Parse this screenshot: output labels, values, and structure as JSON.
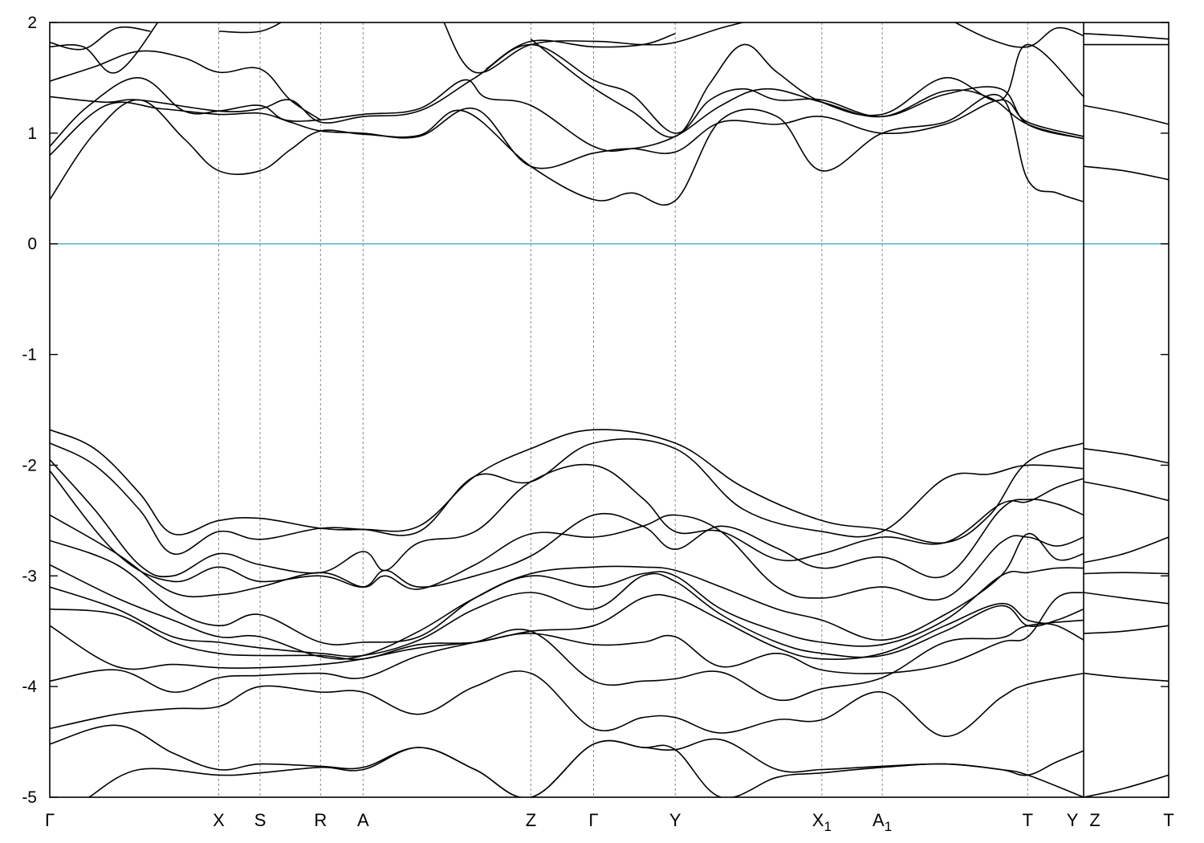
{
  "chart_data": {
    "type": "line",
    "title": "",
    "xlabel": "",
    "ylabel": "",
    "ylim": [
      -5,
      2
    ],
    "yticks": [
      -5,
      -4,
      -3,
      -2,
      -1,
      0,
      1,
      2
    ],
    "ytick_labels": [
      "-5",
      "-4",
      "-3",
      "-2",
      "-1",
      "0",
      "1",
      "2"
    ],
    "grid": "vertical dashed lines at high-symmetry points",
    "fermi_level": {
      "y": 0,
      "color": "#5fb3c8"
    },
    "band_color": "#000000",
    "x_range": [
      0,
      1000
    ],
    "kpoints": [
      {
        "label": "Γ",
        "sub": "",
        "x": 0
      },
      {
        "label": "X",
        "sub": "",
        "x": 151
      },
      {
        "label": "S",
        "sub": "",
        "x": 188
      },
      {
        "label": "R",
        "sub": "",
        "x": 242
      },
      {
        "label": "A",
        "sub": "",
        "x": 280
      },
      {
        "label": "Z",
        "sub": "",
        "x": 430
      },
      {
        "label": "Γ",
        "sub": "",
        "x": 486
      },
      {
        "label": "Y",
        "sub": "",
        "x": 559
      },
      {
        "label": "X",
        "sub": "1",
        "x": 690
      },
      {
        "label": "A",
        "sub": "1",
        "x": 744
      },
      {
        "label": "T",
        "sub": "",
        "x": 874
      },
      {
        "label": "Y",
        "sub": "",
        "x": 924
      },
      {
        "label": "Z",
        "sub": "",
        "x": 924
      },
      {
        "label": "T",
        "sub": "",
        "x": 1000
      }
    ],
    "break_x": 924,
    "series": [
      {
        "x": [
          0,
          40,
          80,
          120,
          151,
          188,
          215,
          242,
          280,
          330,
          370,
          430,
          486,
          520,
          559,
          600,
          650,
          690,
          744,
          800,
          850,
          874,
          900,
          924
        ],
        "y": [
          0.4,
          1.0,
          1.3,
          0.95,
          0.66,
          0.66,
          0.85,
          1.02,
          0.99,
          0.98,
          1.2,
          0.7,
          0.4,
          0.46,
          0.39,
          1.12,
          1.15,
          0.66,
          1.0,
          1.1,
          1.33,
          0.58,
          0.46,
          0.38
        ]
      },
      {
        "x": [
          0,
          50,
          100,
          151,
          188,
          215,
          242,
          280,
          330,
          380,
          430,
          486,
          520,
          559,
          600,
          650,
          690,
          744,
          800,
          850,
          874,
          924
        ],
        "y": [
          0.8,
          1.25,
          1.22,
          1.17,
          1.18,
          1.1,
          1.02,
          1.0,
          0.97,
          1.22,
          0.7,
          0.82,
          0.86,
          0.83,
          1.1,
          1.08,
          1.15,
          1.0,
          1.08,
          1.3,
          1.1,
          0.97
        ]
      },
      {
        "x": [
          0,
          35,
          80,
          120,
          151,
          188,
          210,
          242,
          280,
          330,
          370,
          390,
          430,
          486,
          520,
          559,
          600,
          640,
          690,
          744,
          800,
          840,
          874,
          924
        ],
        "y": [
          0.88,
          1.25,
          1.5,
          1.2,
          1.2,
          1.25,
          1.12,
          1.12,
          1.17,
          1.22,
          1.48,
          1.32,
          1.25,
          0.88,
          0.86,
          0.97,
          1.25,
          1.4,
          1.28,
          1.15,
          1.38,
          1.32,
          1.08,
          0.95
        ]
      },
      {
        "x": [
          0,
          50,
          80,
          151,
          188,
          215,
          242,
          280,
          330,
          380,
          430,
          486,
          520,
          559,
          590,
          620,
          650,
          690,
          744,
          800,
          850,
          874,
          924
        ],
        "y": [
          1.33,
          1.28,
          1.3,
          1.2,
          1.22,
          1.3,
          1.1,
          1.15,
          1.2,
          1.5,
          1.8,
          1.48,
          1.35,
          1.0,
          1.3,
          1.4,
          1.3,
          1.3,
          1.15,
          1.35,
          1.4,
          1.08,
          0.95
        ]
      },
      {
        "x": [
          0,
          40,
          80,
          120,
          151,
          188,
          215,
          242
        ],
        "y": [
          1.47,
          1.6,
          1.74,
          1.68,
          1.55,
          1.58,
          1.3,
          1.12
        ]
      },
      {
        "x": [
          0,
          30,
          60,
          100
        ],
        "y": [
          1.78,
          1.78,
          1.55,
          2.05
        ]
      },
      {
        "x": [
          0,
          30,
          60,
          90
        ],
        "y": [
          1.82,
          1.76,
          1.95,
          1.92
        ]
      },
      {
        "x": [
          350,
          380,
          430,
          486,
          530,
          559,
          600,
          640
        ],
        "y": [
          2.05,
          1.55,
          1.8,
          1.83,
          1.8,
          1.82,
          1.95,
          2.05
        ]
      },
      {
        "x": [
          390,
          430,
          486,
          530,
          559
        ],
        "y": [
          1.58,
          1.83,
          1.78,
          1.8,
          1.9
        ]
      },
      {
        "x": [
          430,
          480,
          520,
          559,
          590,
          620,
          650,
          690,
          744,
          800,
          850,
          874,
          924
        ],
        "y": [
          1.85,
          1.45,
          1.2,
          0.97,
          1.45,
          1.8,
          1.55,
          1.28,
          1.17,
          1.5,
          1.3,
          1.8,
          1.33
        ]
      },
      {
        "x": [
          151,
          188,
          215
        ],
        "y": [
          1.92,
          1.92,
          2.05
        ]
      },
      {
        "x": [
          800,
          840,
          874,
          900,
          924
        ],
        "y": [
          2.05,
          1.85,
          1.78,
          1.95,
          1.88
        ]
      },
      {
        "x": [
          924,
          960,
          1000
        ],
        "y": [
          1.8,
          1.8,
          1.8
        ]
      },
      {
        "x": [
          924,
          960,
          1000
        ],
        "y": [
          1.9,
          1.88,
          1.85
        ]
      },
      {
        "x": [
          924,
          960,
          1000
        ],
        "y": [
          1.25,
          1.18,
          1.08
        ]
      },
      {
        "x": [
          924,
          960,
          1000
        ],
        "y": [
          0.7,
          0.66,
          0.58
        ]
      },
      {
        "x": [
          0,
          40,
          80,
          110,
          151,
          188,
          242,
          280,
          330,
          380,
          430,
          486,
          559,
          620,
          690,
          744,
          800,
          840,
          874,
          924
        ],
        "y": [
          -1.68,
          -1.85,
          -2.25,
          -2.62,
          -2.5,
          -2.48,
          -2.57,
          -2.58,
          -2.55,
          -2.1,
          -1.85,
          -1.68,
          -1.8,
          -2.2,
          -2.5,
          -2.58,
          -2.7,
          -2.45,
          -1.97,
          -1.8
        ]
      },
      {
        "x": [
          0,
          40,
          80,
          110,
          151,
          188,
          242,
          280,
          330,
          380,
          430,
          486,
          559,
          620,
          690,
          744,
          800,
          840,
          874,
          924
        ],
        "y": [
          -1.8,
          -2.0,
          -2.4,
          -2.8,
          -2.6,
          -2.67,
          -2.57,
          -2.58,
          -2.6,
          -2.1,
          -2.15,
          -1.8,
          -1.85,
          -2.4,
          -2.6,
          -2.6,
          -2.12,
          -2.08,
          -2.0,
          -2.03
        ]
      },
      {
        "x": [
          0,
          40,
          80,
          110,
          151,
          188,
          242,
          280,
          300,
          330,
          380,
          430,
          486,
          530,
          559,
          600,
          650,
          690,
          744,
          800,
          850,
          874,
          900,
          924
        ],
        "y": [
          -1.95,
          -2.4,
          -2.9,
          -3.0,
          -2.8,
          -2.9,
          -2.97,
          -2.78,
          -2.95,
          -2.7,
          -2.6,
          -2.15,
          -2.0,
          -2.3,
          -2.6,
          -2.6,
          -2.85,
          -2.8,
          -2.65,
          -2.7,
          -2.35,
          -2.33,
          -2.2,
          -2.12
        ]
      },
      {
        "x": [
          0,
          60,
          110,
          151,
          188,
          242,
          280,
          300,
          330,
          380,
          430,
          486,
          530,
          559,
          600,
          650,
          690,
          744,
          800,
          850,
          874,
          900,
          924
        ],
        "y": [
          -2.05,
          -2.8,
          -3.05,
          -2.92,
          -3.05,
          -3.0,
          -3.1,
          -2.95,
          -3.1,
          -3.0,
          -2.82,
          -2.45,
          -2.55,
          -2.76,
          -2.55,
          -2.75,
          -2.93,
          -2.83,
          -3.0,
          -2.4,
          -2.31,
          -2.35,
          -2.45
        ]
      },
      {
        "x": [
          0,
          60,
          110,
          151,
          188,
          242,
          280,
          300,
          330,
          380,
          430,
          486,
          530,
          559,
          600,
          650,
          690,
          744,
          800,
          850,
          874,
          900,
          924
        ],
        "y": [
          -2.45,
          -2.8,
          -3.15,
          -3.17,
          -3.1,
          -2.97,
          -3.1,
          -3.0,
          -3.12,
          -2.9,
          -2.62,
          -2.65,
          -2.55,
          -2.45,
          -2.6,
          -3.1,
          -3.2,
          -3.1,
          -3.2,
          -2.7,
          -2.65,
          -2.73,
          -2.65
        ]
      },
      {
        "x": [
          0,
          60,
          110,
          151,
          188,
          242,
          280,
          330,
          380,
          430,
          486,
          530,
          559,
          600,
          650,
          690,
          744,
          800,
          850,
          874,
          900,
          924
        ],
        "y": [
          -2.68,
          -2.9,
          -3.3,
          -3.45,
          -3.35,
          -3.6,
          -3.6,
          -3.55,
          -3.2,
          -2.98,
          -2.92,
          -2.92,
          -2.95,
          -3.1,
          -3.3,
          -3.4,
          -3.58,
          -3.35,
          -3.0,
          -2.62,
          -2.85,
          -2.8
        ]
      },
      {
        "x": [
          0,
          60,
          110,
          151,
          188,
          242,
          280,
          330,
          380,
          430,
          486,
          530,
          559,
          600,
          650,
          690,
          744,
          800,
          850,
          874,
          900,
          924
        ],
        "y": [
          -2.9,
          -3.2,
          -3.4,
          -3.55,
          -3.55,
          -3.73,
          -3.72,
          -3.5,
          -3.2,
          -3.0,
          -3.1,
          -2.98,
          -3.0,
          -3.3,
          -3.5,
          -3.6,
          -3.62,
          -3.4,
          -3.0,
          -2.97,
          -2.93,
          -2.93
        ]
      },
      {
        "x": [
          0,
          60,
          110,
          151,
          188,
          242,
          280,
          330,
          380,
          430,
          486,
          530,
          559,
          600,
          650,
          690,
          744,
          800,
          850,
          874,
          900,
          924
        ],
        "y": [
          -3.1,
          -3.3,
          -3.55,
          -3.6,
          -3.65,
          -3.7,
          -3.72,
          -3.58,
          -3.3,
          -3.15,
          -3.3,
          -3.0,
          -3.05,
          -3.35,
          -3.6,
          -3.7,
          -3.72,
          -3.5,
          -3.27,
          -3.45,
          -3.4,
          -3.3
        ]
      },
      {
        "x": [
          0,
          60,
          110,
          151,
          188,
          242,
          280,
          330,
          380,
          430,
          486,
          530,
          559,
          600,
          650,
          690,
          744,
          800,
          850,
          874,
          900,
          924
        ],
        "y": [
          -3.3,
          -3.35,
          -3.6,
          -3.7,
          -3.72,
          -3.72,
          -3.75,
          -3.62,
          -3.6,
          -3.5,
          -3.45,
          -3.2,
          -3.2,
          -3.4,
          -3.65,
          -3.75,
          -3.7,
          -3.45,
          -3.25,
          -3.4,
          -3.45,
          -3.58
        ]
      },
      {
        "x": [
          0,
          60,
          110,
          151,
          188,
          242,
          280,
          330,
          380,
          430,
          486,
          530,
          559,
          600,
          650,
          690,
          744,
          800,
          850,
          874,
          900,
          924
        ],
        "y": [
          -3.45,
          -3.82,
          -3.8,
          -3.83,
          -3.83,
          -3.8,
          -3.75,
          -3.65,
          -3.6,
          -3.52,
          -3.62,
          -3.6,
          -3.55,
          -3.82,
          -3.7,
          -3.85,
          -3.88,
          -3.8,
          -3.6,
          -3.55,
          -3.2,
          -3.15
        ]
      },
      {
        "x": [
          0,
          60,
          110,
          151,
          188,
          242,
          280,
          330,
          380,
          430,
          486,
          530,
          559,
          600,
          650,
          690,
          744,
          800,
          850,
          874,
          924
        ],
        "y": [
          -3.95,
          -3.85,
          -4.05,
          -3.92,
          -3.9,
          -3.88,
          -3.92,
          -3.72,
          -3.6,
          -3.5,
          -3.95,
          -3.95,
          -3.93,
          -3.87,
          -4.12,
          -4.02,
          -3.92,
          -3.6,
          -3.56,
          -3.45,
          -3.4
        ]
      },
      {
        "x": [
          0,
          60,
          110,
          151,
          188,
          242,
          280,
          330,
          380,
          430,
          486,
          530,
          559,
          600,
          650,
          690,
          744,
          800,
          850,
          874,
          924
        ],
        "y": [
          -4.38,
          -4.25,
          -4.2,
          -4.18,
          -4.0,
          -4.05,
          -4.05,
          -4.25,
          -4.0,
          -3.88,
          -4.38,
          -4.28,
          -4.28,
          -4.42,
          -4.3,
          -4.3,
          -4.05,
          -4.45,
          -4.1,
          -3.98,
          -3.88
        ]
      },
      {
        "x": [
          0,
          60,
          110,
          151,
          188,
          242,
          280,
          330,
          380,
          430,
          486,
          530,
          559,
          600,
          650,
          690,
          744,
          800,
          850,
          874,
          924
        ],
        "y": [
          -4.52,
          -4.35,
          -4.6,
          -4.75,
          -4.7,
          -4.72,
          -4.73,
          -4.55,
          -4.75,
          -5.0,
          -4.52,
          -4.55,
          -4.57,
          -4.48,
          -4.75,
          -4.75,
          -4.72,
          -4.7,
          -4.75,
          -4.8,
          -5.0
        ]
      },
      {
        "x": [
          35,
          80,
          151,
          188,
          242,
          280,
          330,
          380,
          430,
          486,
          530,
          559,
          600,
          650,
          690,
          744,
          800,
          850,
          874,
          900,
          924
        ],
        "y": [
          -5.0,
          -4.75,
          -4.8,
          -4.78,
          -4.73,
          -4.75,
          -4.55,
          -4.75,
          -5.0,
          -4.52,
          -4.55,
          -4.57,
          -5.0,
          -4.82,
          -4.78,
          -4.73,
          -4.7,
          -4.75,
          -4.8,
          -4.68,
          -4.58
        ]
      },
      {
        "x": [
          924,
          960,
          1000
        ],
        "y": [
          -1.85,
          -1.9,
          -1.98
        ]
      },
      {
        "x": [
          924,
          960,
          1000
        ],
        "y": [
          -2.15,
          -2.22,
          -2.32
        ]
      },
      {
        "x": [
          924,
          960,
          1000
        ],
        "y": [
          -2.88,
          -2.8,
          -2.65
        ]
      },
      {
        "x": [
          924,
          960,
          1000
        ],
        "y": [
          -2.98,
          -2.97,
          -2.98
        ]
      },
      {
        "x": [
          924,
          960,
          1000
        ],
        "y": [
          -3.15,
          -3.2,
          -3.25
        ]
      },
      {
        "x": [
          924,
          960,
          1000
        ],
        "y": [
          -3.52,
          -3.5,
          -3.45
        ]
      },
      {
        "x": [
          924,
          960,
          1000
        ],
        "y": [
          -3.88,
          -3.92,
          -3.95
        ]
      },
      {
        "x": [
          924,
          960,
          1000
        ],
        "y": [
          -5.0,
          -4.92,
          -4.8
        ]
      }
    ]
  }
}
